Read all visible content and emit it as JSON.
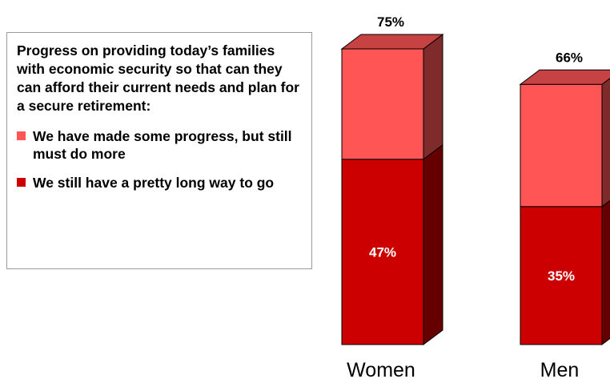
{
  "legend": {
    "heading": "Progress on providing today’s families with economic security so that can they can afford their current needs and plan for a secure retirement:",
    "items": [
      {
        "label": "We have made some progress, but still must do more",
        "color": "#ff5555"
      },
      {
        "label": "We still have a pretty long way to go",
        "color": "#cc0000"
      }
    ]
  },
  "chart_data": {
    "type": "bar",
    "stacked": true,
    "categories": [
      "Women",
      "Men"
    ],
    "series": [
      {
        "name": "We still have a pretty long way to go",
        "values": [
          47,
          35
        ],
        "color": "#cc0000"
      },
      {
        "name": "We have made some progress, but still must do more",
        "values": [
          28,
          31
        ],
        "color": "#ff5555"
      }
    ],
    "totals": [
      "75%",
      "66%"
    ],
    "bottom_labels": [
      "47%",
      "35%"
    ],
    "ylim": [
      0,
      75
    ],
    "grid": false,
    "legend_position": "left"
  }
}
